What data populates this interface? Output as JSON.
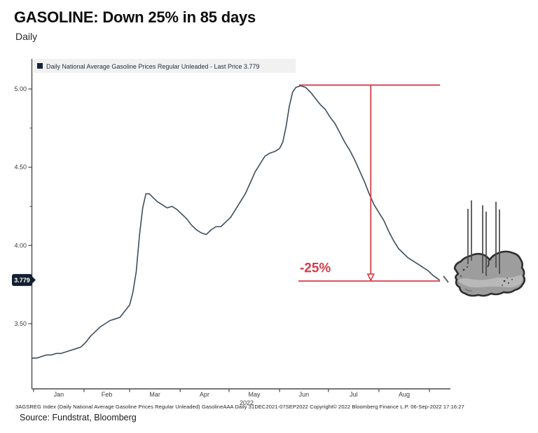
{
  "header": {
    "title": "GASOLINE: Down 25% in 85 days",
    "subtitle": "Daily"
  },
  "chart_data": {
    "type": "line",
    "title": "GASOLINE: Down 25% in 85 days",
    "subtitle": "Daily",
    "legend_label": "Daily National Average Gasoline Prices Regular Unleaded - Last Price 3.779",
    "last_price": 3.779,
    "last_price_label": "3.779",
    "year_label": "2022",
    "xlabel": "",
    "ylabel": "",
    "ylim": [
      3.05,
      5.15
    ],
    "grid": false,
    "legend_position": "top-left",
    "y_ticks": [
      5.0,
      4.5,
      4.0,
      3.5
    ],
    "y_tick_labels": [
      "5.00",
      "4.50",
      "4.00",
      "3.50"
    ],
    "y_minor_ticks": [
      4.75,
      4.25,
      3.75
    ],
    "x_labels": [
      "Jan",
      "Feb",
      "Mar",
      "Apr",
      "May",
      "Jun",
      "Jul",
      "Aug"
    ],
    "month_tick_days": [
      1,
      32,
      60,
      91,
      121,
      152,
      182,
      213,
      244
    ],
    "month_label_days": [
      16.5,
      46,
      75.5,
      106,
      136.5,
      167,
      197.5,
      228.5
    ],
    "x_range_days": [
      0,
      250
    ],
    "annotation": {
      "label": "-25%",
      "top_value": 5.025,
      "bottom_value": 3.779,
      "start_day": 164,
      "end_day": 250.5,
      "arrow_day": 208
    },
    "colors": {
      "line": "#3e4d5c",
      "legend_square": "#16233a",
      "legend_bg": "#f1f1f1",
      "badge_bg": "#141f30",
      "badge_text": "#ffffff",
      "annotation_red": "#d63c4a",
      "axis": "#4a4a4a",
      "tick_text": "#3c3c3c"
    },
    "series": [
      {
        "name": "Daily National Average Gasoline Prices Regular Unleaded",
        "points": [
          [
            "Dec 31",
            0,
            3.28
          ],
          [
            "Jan 3",
            3,
            3.28
          ],
          [
            "Jan 6",
            6,
            3.29
          ],
          [
            "Jan 9",
            9,
            3.3
          ],
          [
            "Jan 12",
            12,
            3.3
          ],
          [
            "Jan 15",
            15,
            3.31
          ],
          [
            "Jan 18",
            18,
            3.31
          ],
          [
            "Jan 21",
            21,
            3.32
          ],
          [
            "Jan 24",
            24,
            3.33
          ],
          [
            "Jan 27",
            27,
            3.34
          ],
          [
            "Jan 30",
            30,
            3.35
          ],
          [
            "Feb 2",
            33,
            3.38
          ],
          [
            "Feb 5",
            36,
            3.42
          ],
          [
            "Feb 8",
            39,
            3.45
          ],
          [
            "Feb 11",
            42,
            3.48
          ],
          [
            "Feb 14",
            45,
            3.5
          ],
          [
            "Feb 17",
            48,
            3.52
          ],
          [
            "Feb 20",
            51,
            3.53
          ],
          [
            "Feb 23",
            54,
            3.54
          ],
          [
            "Feb 26",
            57,
            3.58
          ],
          [
            "Mar 1",
            60,
            3.62
          ],
          [
            "Mar 3",
            62,
            3.7
          ],
          [
            "Mar 5",
            64,
            3.83
          ],
          [
            "Mar 7",
            66,
            4.06
          ],
          [
            "Mar 9",
            68,
            4.24
          ],
          [
            "Mar 11",
            70,
            4.33
          ],
          [
            "Mar 13",
            72,
            4.33
          ],
          [
            "Mar 15",
            74,
            4.31
          ],
          [
            "Mar 18",
            77,
            4.28
          ],
          [
            "Mar 21",
            80,
            4.26
          ],
          [
            "Mar 24",
            83,
            4.24
          ],
          [
            "Mar 27",
            86,
            4.25
          ],
          [
            "Mar 30",
            89,
            4.23
          ],
          [
            "Apr 2",
            92,
            4.2
          ],
          [
            "Apr 5",
            95,
            4.17
          ],
          [
            "Apr 8",
            98,
            4.13
          ],
          [
            "Apr 11",
            101,
            4.1
          ],
          [
            "Apr 14",
            104,
            4.08
          ],
          [
            "Apr 17",
            107,
            4.07
          ],
          [
            "Apr 20",
            110,
            4.1
          ],
          [
            "Apr 23",
            113,
            4.12
          ],
          [
            "Apr 26",
            116,
            4.12
          ],
          [
            "Apr 29",
            119,
            4.15
          ],
          [
            "May 2",
            122,
            4.18
          ],
          [
            "May 5",
            125,
            4.23
          ],
          [
            "May 8",
            128,
            4.28
          ],
          [
            "May 11",
            131,
            4.33
          ],
          [
            "May 14",
            134,
            4.4
          ],
          [
            "May 17",
            137,
            4.47
          ],
          [
            "May 20",
            140,
            4.52
          ],
          [
            "May 23",
            143,
            4.57
          ],
          [
            "May 26",
            146,
            4.59
          ],
          [
            "May 29",
            149,
            4.6
          ],
          [
            "Jun 1",
            152,
            4.62
          ],
          [
            "Jun 3",
            154,
            4.66
          ],
          [
            "Jun 5",
            156,
            4.76
          ],
          [
            "Jun 7",
            158,
            4.89
          ],
          [
            "Jun 9",
            160,
            4.98
          ],
          [
            "Jun 11",
            162,
            5.01
          ],
          [
            "Jun 14",
            165,
            5.02
          ],
          [
            "Jun 17",
            168,
            5.01
          ],
          [
            "Jun 20",
            171,
            4.98
          ],
          [
            "Jun 23",
            174,
            4.94
          ],
          [
            "Jun 26",
            177,
            4.9
          ],
          [
            "Jun 29",
            180,
            4.87
          ],
          [
            "Jul 2",
            183,
            4.82
          ],
          [
            "Jul 5",
            186,
            4.78
          ],
          [
            "Jul 8",
            189,
            4.72
          ],
          [
            "Jul 11",
            192,
            4.66
          ],
          [
            "Jul 14",
            195,
            4.61
          ],
          [
            "Jul 17",
            198,
            4.55
          ],
          [
            "Jul 20",
            201,
            4.48
          ],
          [
            "Jul 23",
            204,
            4.41
          ],
          [
            "Jul 26",
            207,
            4.33
          ],
          [
            "Jul 29",
            210,
            4.26
          ],
          [
            "Aug 1",
            213,
            4.21
          ],
          [
            "Aug 4",
            216,
            4.16
          ],
          [
            "Aug 7",
            219,
            4.09
          ],
          [
            "Aug 10",
            222,
            4.03
          ],
          [
            "Aug 13",
            225,
            3.98
          ],
          [
            "Aug 16",
            228,
            3.95
          ],
          [
            "Aug 19",
            231,
            3.92
          ],
          [
            "Aug 22",
            234,
            3.9
          ],
          [
            "Aug 25",
            237,
            3.88
          ],
          [
            "Aug 28",
            240,
            3.86
          ],
          [
            "Aug 31",
            243,
            3.84
          ],
          [
            "Sep 3",
            246,
            3.81
          ],
          [
            "Sep 7",
            250,
            3.78
          ]
        ]
      }
    ]
  },
  "footer": {
    "bloomberg_line": "3AGSREG Index (Daily National Average Gasoline Prices Regular Unleaded) GasolineAAA  Daily 31DEC2021-07SEP2022  Copyright© 2022 Bloomberg Finance L.P.  06-Sep-2022 17:16:27",
    "source_line": "Source: Fundstrat, Bloomberg"
  }
}
